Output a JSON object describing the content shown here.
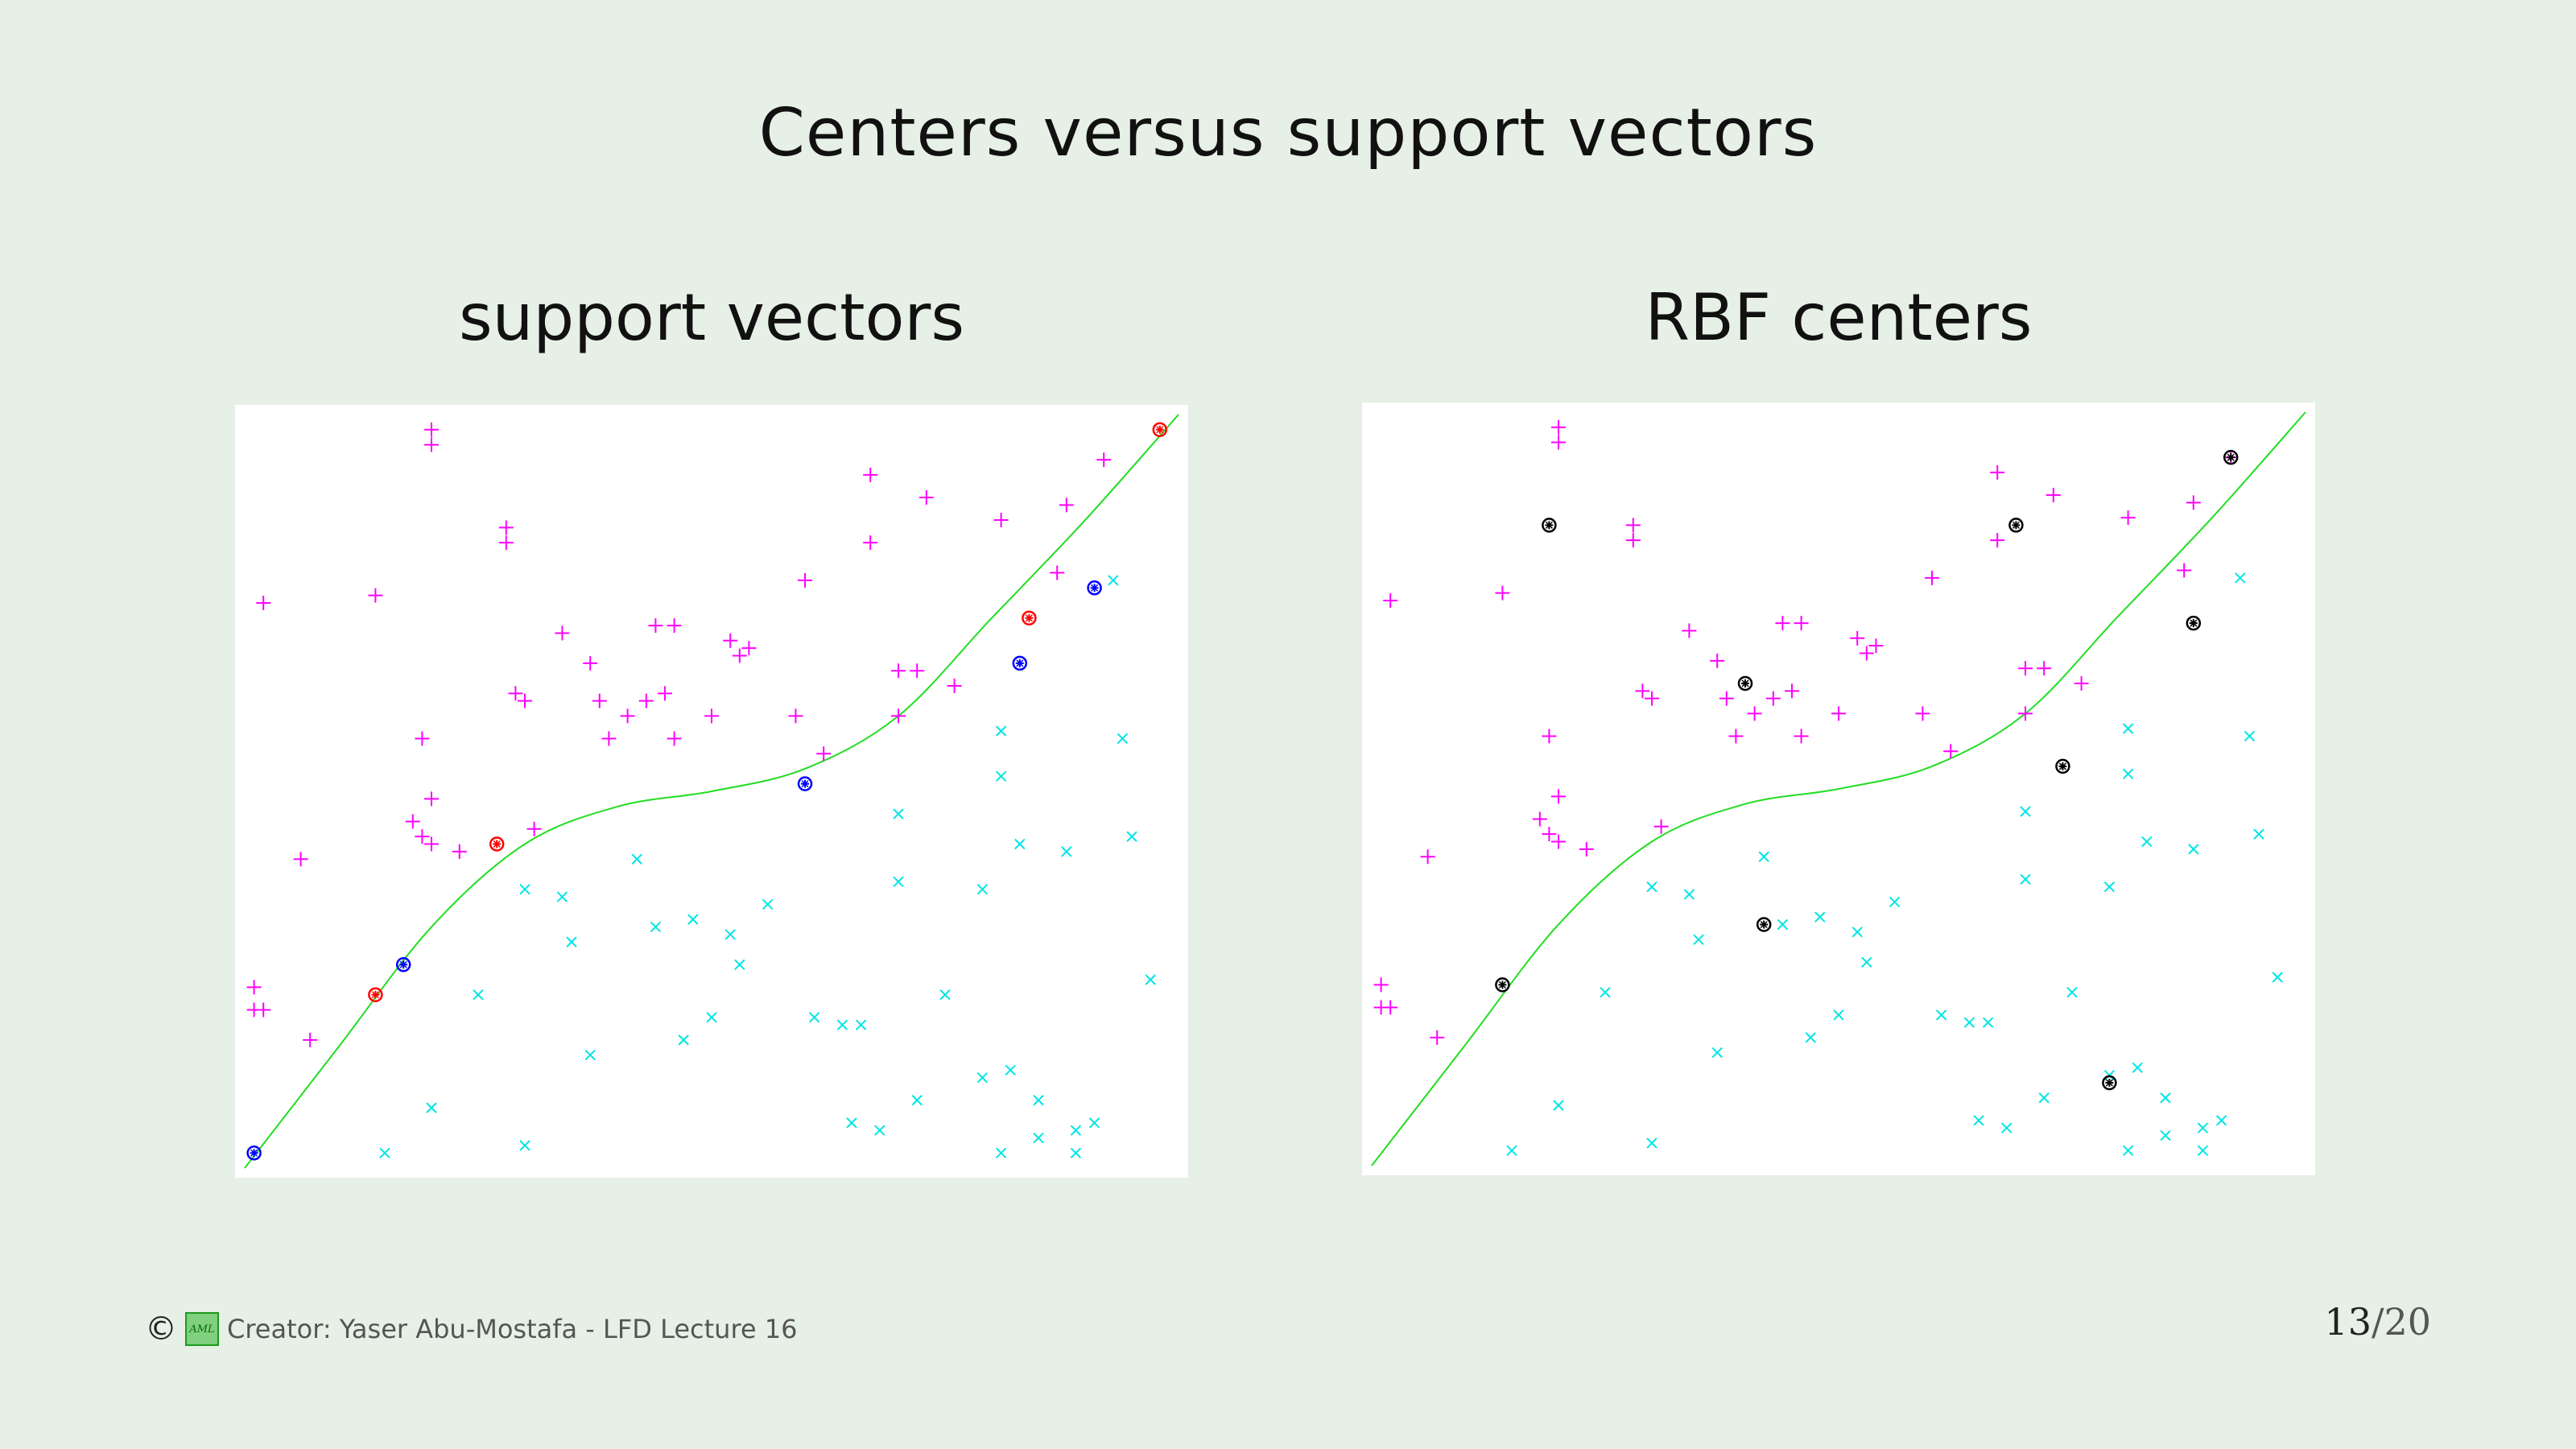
{
  "slide": {
    "title": "Centers versus support vectors",
    "left_subtitle": "support vectors",
    "right_subtitle": "RBF centers",
    "footer_text": "Creator: Yaser Abu-Mostafa - LFD Lecture 16",
    "logo_text": "AML",
    "page_current": "13",
    "page_total": "/20"
  },
  "colors": {
    "background": "#e6f0e6",
    "positive": "#ff00ff",
    "negative": "#00e5e5",
    "boundary": "#22dd22",
    "sv_positive": "#ff0000",
    "sv_negative": "#0000ff",
    "center": "#000000"
  },
  "chart_data": [
    {
      "type": "scatter",
      "title": "support vectors",
      "xlim": [
        0,
        1
      ],
      "ylim": [
        0,
        1
      ],
      "boundary_curve": [
        [
          0,
          0
        ],
        [
          0.1,
          0.16
        ],
        [
          0.2,
          0.32
        ],
        [
          0.3,
          0.43
        ],
        [
          0.4,
          0.48
        ],
        [
          0.5,
          0.5
        ],
        [
          0.6,
          0.53
        ],
        [
          0.7,
          0.6
        ],
        [
          0.8,
          0.73
        ],
        [
          0.9,
          0.86
        ],
        [
          1,
          1
        ]
      ],
      "positive_points": [
        [
          0.2,
          0.98
        ],
        [
          0.2,
          0.96
        ],
        [
          0.28,
          0.85
        ],
        [
          0.28,
          0.83
        ],
        [
          0.02,
          0.75
        ],
        [
          0.14,
          0.76
        ],
        [
          0.34,
          0.71
        ],
        [
          0.37,
          0.67
        ],
        [
          0.44,
          0.72
        ],
        [
          0.46,
          0.72
        ],
        [
          0.52,
          0.7
        ],
        [
          0.54,
          0.69
        ],
        [
          0.53,
          0.68
        ],
        [
          0.3,
          0.62
        ],
        [
          0.29,
          0.63
        ],
        [
          0.38,
          0.62
        ],
        [
          0.41,
          0.6
        ],
        [
          0.43,
          0.62
        ],
        [
          0.45,
          0.63
        ],
        [
          0.39,
          0.57
        ],
        [
          0.46,
          0.57
        ],
        [
          0.5,
          0.6
        ],
        [
          0.59,
          0.6
        ],
        [
          0.62,
          0.55
        ],
        [
          0.19,
          0.57
        ],
        [
          0.2,
          0.49
        ],
        [
          0.18,
          0.46
        ],
        [
          0.19,
          0.44
        ],
        [
          0.2,
          0.43
        ],
        [
          0.23,
          0.42
        ],
        [
          0.31,
          0.45
        ],
        [
          0.06,
          0.41
        ],
        [
          0.6,
          0.78
        ],
        [
          0.67,
          0.92
        ],
        [
          0.67,
          0.83
        ],
        [
          0.73,
          0.89
        ],
        [
          0.72,
          0.66
        ],
        [
          0.7,
          0.66
        ],
        [
          0.7,
          0.6
        ],
        [
          0.76,
          0.64
        ],
        [
          0.81,
          0.86
        ],
        [
          0.88,
          0.88
        ],
        [
          0.87,
          0.79
        ],
        [
          0.92,
          0.94
        ],
        [
          0.01,
          0.24
        ],
        [
          0.02,
          0.21
        ],
        [
          0.01,
          0.21
        ],
        [
          0.07,
          0.17
        ]
      ],
      "negative_points": [
        [
          0.93,
          0.78
        ],
        [
          0.81,
          0.58
        ],
        [
          0.94,
          0.57
        ],
        [
          0.81,
          0.52
        ],
        [
          0.83,
          0.43
        ],
        [
          0.88,
          0.42
        ],
        [
          0.95,
          0.44
        ],
        [
          0.7,
          0.47
        ],
        [
          0.7,
          0.38
        ],
        [
          0.79,
          0.37
        ],
        [
          0.42,
          0.41
        ],
        [
          0.3,
          0.37
        ],
        [
          0.34,
          0.36
        ],
        [
          0.35,
          0.3
        ],
        [
          0.44,
          0.32
        ],
        [
          0.48,
          0.33
        ],
        [
          0.52,
          0.31
        ],
        [
          0.56,
          0.35
        ],
        [
          0.53,
          0.27
        ],
        [
          0.25,
          0.23
        ],
        [
          0.37,
          0.15
        ],
        [
          0.47,
          0.17
        ],
        [
          0.5,
          0.2
        ],
        [
          0.61,
          0.2
        ],
        [
          0.64,
          0.19
        ],
        [
          0.66,
          0.19
        ],
        [
          0.75,
          0.23
        ],
        [
          0.2,
          0.08
        ],
        [
          0.15,
          0.02
        ],
        [
          0.3,
          0.03
        ],
        [
          0.65,
          0.06
        ],
        [
          0.68,
          0.05
        ],
        [
          0.72,
          0.09
        ],
        [
          0.79,
          0.12
        ],
        [
          0.82,
          0.13
        ],
        [
          0.85,
          0.09
        ],
        [
          0.81,
          0.02
        ],
        [
          0.85,
          0.04
        ],
        [
          0.89,
          0.05
        ],
        [
          0.91,
          0.06
        ],
        [
          0.89,
          0.02
        ],
        [
          0.97,
          0.25
        ]
      ],
      "support_vectors_positive": [
        [
          0.14,
          0.23
        ],
        [
          0.27,
          0.43
        ],
        [
          0.84,
          0.73
        ],
        [
          0.98,
          0.98
        ]
      ],
      "support_vectors_negative": [
        [
          0.01,
          0.02
        ],
        [
          0.17,
          0.27
        ],
        [
          0.6,
          0.51
        ],
        [
          0.83,
          0.67
        ],
        [
          0.91,
          0.77
        ]
      ]
    },
    {
      "type": "scatter",
      "title": "RBF centers",
      "xlim": [
        0,
        1
      ],
      "ylim": [
        0,
        1
      ],
      "boundary_curve": [
        [
          0,
          0
        ],
        [
          0.1,
          0.16
        ],
        [
          0.2,
          0.32
        ],
        [
          0.3,
          0.43
        ],
        [
          0.4,
          0.48
        ],
        [
          0.5,
          0.5
        ],
        [
          0.6,
          0.53
        ],
        [
          0.7,
          0.6
        ],
        [
          0.8,
          0.73
        ],
        [
          0.9,
          0.86
        ],
        [
          1,
          1
        ]
      ],
      "positive_points": [
        [
          0.2,
          0.98
        ],
        [
          0.2,
          0.96
        ],
        [
          0.28,
          0.85
        ],
        [
          0.28,
          0.83
        ],
        [
          0.02,
          0.75
        ],
        [
          0.14,
          0.76
        ],
        [
          0.34,
          0.71
        ],
        [
          0.37,
          0.67
        ],
        [
          0.44,
          0.72
        ],
        [
          0.46,
          0.72
        ],
        [
          0.52,
          0.7
        ],
        [
          0.54,
          0.69
        ],
        [
          0.53,
          0.68
        ],
        [
          0.3,
          0.62
        ],
        [
          0.29,
          0.63
        ],
        [
          0.38,
          0.62
        ],
        [
          0.41,
          0.6
        ],
        [
          0.43,
          0.62
        ],
        [
          0.45,
          0.63
        ],
        [
          0.39,
          0.57
        ],
        [
          0.46,
          0.57
        ],
        [
          0.5,
          0.6
        ],
        [
          0.59,
          0.6
        ],
        [
          0.62,
          0.55
        ],
        [
          0.19,
          0.57
        ],
        [
          0.2,
          0.49
        ],
        [
          0.18,
          0.46
        ],
        [
          0.19,
          0.44
        ],
        [
          0.2,
          0.43
        ],
        [
          0.23,
          0.42
        ],
        [
          0.31,
          0.45
        ],
        [
          0.06,
          0.41
        ],
        [
          0.6,
          0.78
        ],
        [
          0.67,
          0.92
        ],
        [
          0.67,
          0.83
        ],
        [
          0.73,
          0.89
        ],
        [
          0.72,
          0.66
        ],
        [
          0.7,
          0.66
        ],
        [
          0.7,
          0.6
        ],
        [
          0.76,
          0.64
        ],
        [
          0.81,
          0.86
        ],
        [
          0.88,
          0.88
        ],
        [
          0.87,
          0.79
        ],
        [
          0.92,
          0.94
        ],
        [
          0.01,
          0.24
        ],
        [
          0.02,
          0.21
        ],
        [
          0.01,
          0.21
        ],
        [
          0.07,
          0.17
        ]
      ],
      "negative_points": [
        [
          0.93,
          0.78
        ],
        [
          0.81,
          0.58
        ],
        [
          0.94,
          0.57
        ],
        [
          0.81,
          0.52
        ],
        [
          0.83,
          0.43
        ],
        [
          0.88,
          0.42
        ],
        [
          0.95,
          0.44
        ],
        [
          0.7,
          0.47
        ],
        [
          0.7,
          0.38
        ],
        [
          0.79,
          0.37
        ],
        [
          0.42,
          0.41
        ],
        [
          0.3,
          0.37
        ],
        [
          0.34,
          0.36
        ],
        [
          0.35,
          0.3
        ],
        [
          0.44,
          0.32
        ],
        [
          0.48,
          0.33
        ],
        [
          0.52,
          0.31
        ],
        [
          0.56,
          0.35
        ],
        [
          0.53,
          0.27
        ],
        [
          0.25,
          0.23
        ],
        [
          0.37,
          0.15
        ],
        [
          0.47,
          0.17
        ],
        [
          0.5,
          0.2
        ],
        [
          0.61,
          0.2
        ],
        [
          0.64,
          0.19
        ],
        [
          0.66,
          0.19
        ],
        [
          0.75,
          0.23
        ],
        [
          0.2,
          0.08
        ],
        [
          0.15,
          0.02
        ],
        [
          0.3,
          0.03
        ],
        [
          0.65,
          0.06
        ],
        [
          0.68,
          0.05
        ],
        [
          0.72,
          0.09
        ],
        [
          0.79,
          0.12
        ],
        [
          0.82,
          0.13
        ],
        [
          0.85,
          0.09
        ],
        [
          0.81,
          0.02
        ],
        [
          0.85,
          0.04
        ],
        [
          0.89,
          0.05
        ],
        [
          0.91,
          0.06
        ],
        [
          0.89,
          0.02
        ],
        [
          0.97,
          0.25
        ]
      ],
      "centers": [
        [
          0.14,
          0.24
        ],
        [
          0.19,
          0.85
        ],
        [
          0.4,
          0.64
        ],
        [
          0.42,
          0.32
        ],
        [
          0.69,
          0.85
        ],
        [
          0.74,
          0.53
        ],
        [
          0.79,
          0.11
        ],
        [
          0.88,
          0.72
        ],
        [
          0.92,
          0.94
        ]
      ]
    }
  ]
}
